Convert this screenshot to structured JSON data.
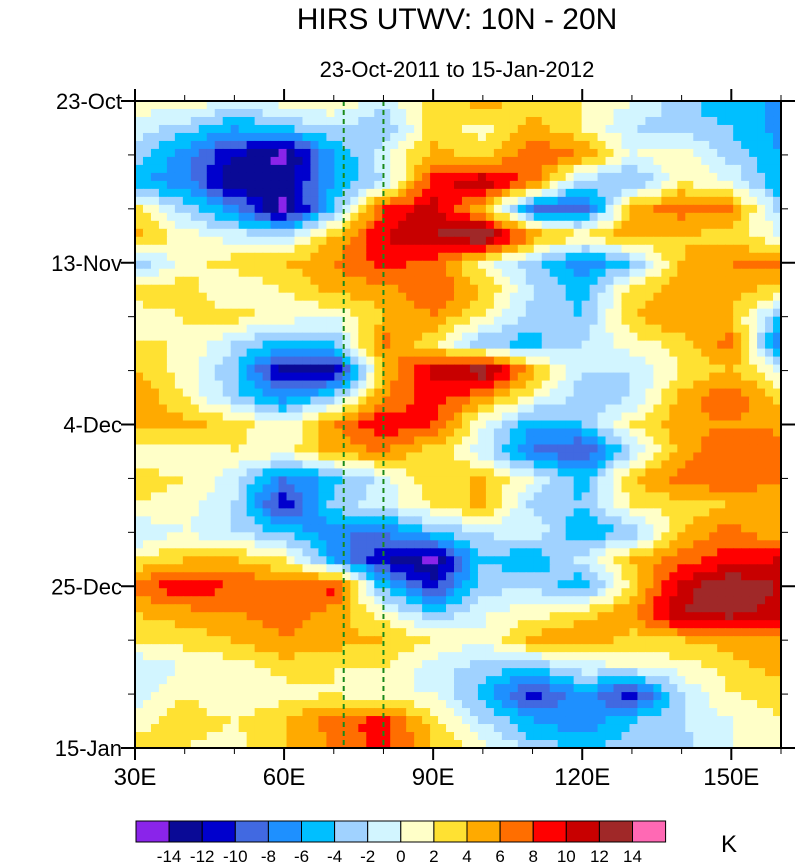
{
  "chart_data": {
    "type": "heatmap",
    "title": "HIRS UTWV: 10N - 20N",
    "subtitle": "23-Oct-2011 to 15-Jan-2012",
    "xlabel": "",
    "ylabel": "",
    "x_axis": {
      "range": [
        30,
        160
      ],
      "tick_values": [
        30,
        60,
        90,
        120,
        150
      ],
      "tick_labels": [
        "30E",
        "60E",
        "90E",
        "120E",
        "150E"
      ],
      "minor_step": 10
    },
    "y_axis": {
      "range_days": [
        0,
        84
      ],
      "tick_days": [
        0,
        21,
        42,
        63,
        84
      ],
      "tick_labels": [
        "23-Oct",
        "13-Nov",
        "4-Dec",
        "25-Dec",
        "15-Jan"
      ],
      "minor_step_days": 7,
      "direction": "downward"
    },
    "reference_lines_lon": [
      72,
      80
    ],
    "reference_line_color": "#1a8a1a",
    "colorbar": {
      "unit": "K",
      "levels": [
        -14,
        -12,
        -10,
        -8,
        -6,
        -4,
        -2,
        0,
        2,
        4,
        6,
        8,
        10,
        12,
        14
      ],
      "level_labels": [
        "-14",
        "-12",
        "-10",
        "-8",
        "-6",
        "-4",
        "-2",
        "0",
        "2",
        "4",
        "6",
        "8",
        "10",
        "12",
        "14"
      ],
      "colors": [
        "#8a24ea",
        "#0a0a96",
        "#0000cd",
        "#4169e1",
        "#1e90ff",
        "#00bfff",
        "#a0d2ff",
        "#d2f5ff",
        "#ffffc8",
        "#ffe132",
        "#ffaa00",
        "#ff6e00",
        "#ff0000",
        "#c80000",
        "#a02828",
        "#ff69b4"
      ]
    },
    "grid_lon": [
      30,
      40,
      50,
      60,
      70,
      80,
      90,
      100,
      110,
      120,
      130,
      140,
      150,
      160
    ],
    "grid_day": [
      0,
      3.5,
      7,
      10.5,
      14,
      17.5,
      21,
      24.5,
      28,
      31.5,
      35,
      38.5,
      42,
      45.5,
      49,
      52.5,
      56,
      59.5,
      63,
      66.5,
      70,
      73.5,
      77,
      80.5,
      84
    ],
    "values": [
      [
        1,
        2,
        -1,
        1,
        2,
        -1,
        3,
        5,
        3,
        2,
        0,
        -3,
        -6,
        -6
      ],
      [
        -1,
        -3,
        -6,
        -4,
        -2,
        -4,
        3,
        1,
        5,
        2,
        -2,
        -3,
        -4,
        -7
      ],
      [
        -3,
        -7,
        -12,
        -15,
        -6,
        -1,
        5,
        3,
        8,
        6,
        0,
        1,
        -3,
        -6
      ],
      [
        -6,
        -7,
        -14,
        -13,
        -6,
        -2,
        9,
        12,
        7,
        -3,
        -5,
        2,
        0,
        -6
      ],
      [
        3,
        -3,
        -7,
        -15,
        -4,
        8,
        11,
        4,
        -8,
        -10,
        5,
        7,
        6,
        -3
      ],
      [
        5,
        1,
        -1,
        -2,
        4,
        10,
        12,
        15,
        6,
        3,
        5,
        4,
        3,
        0
      ],
      [
        -4,
        1,
        3,
        4,
        6,
        9,
        7,
        1,
        -3,
        -8,
        -4,
        4,
        6,
        7
      ],
      [
        3,
        3,
        0,
        2,
        5,
        5,
        8,
        4,
        -2,
        -5,
        3,
        5,
        5,
        3
      ],
      [
        1,
        2,
        3,
        1,
        0,
        4,
        6,
        2,
        -3,
        -4,
        4,
        6,
        4,
        -4
      ],
      [
        2,
        2,
        -2,
        -5,
        -4,
        7,
        2,
        -4,
        -5,
        -2,
        1,
        3,
        7,
        -9
      ],
      [
        4,
        1,
        -4,
        -13,
        -13,
        4,
        11,
        14,
        5,
        -2,
        -2,
        2,
        4,
        0
      ],
      [
        6,
        2,
        -3,
        -7,
        -3,
        6,
        9,
        6,
        1,
        -3,
        -2,
        5,
        8,
        3
      ],
      [
        4,
        5,
        3,
        0,
        6,
        10,
        8,
        0,
        -6,
        -4,
        2,
        5,
        6,
        5
      ],
      [
        1,
        0,
        2,
        1,
        5,
        6,
        3,
        -1,
        -8,
        -11,
        -2,
        5,
        8,
        8
      ],
      [
        3,
        2,
        -1,
        -8,
        -5,
        -1,
        4,
        4,
        0,
        -5,
        4,
        7,
        8,
        6
      ],
      [
        2,
        1,
        -2,
        -12,
        -3,
        -1,
        2,
        5,
        -3,
        -4,
        2,
        3,
        4,
        5
      ],
      [
        -2,
        0,
        -2,
        -4,
        -8,
        -8,
        -4,
        -2,
        0,
        -6,
        -4,
        4,
        7,
        4
      ],
      [
        2,
        4,
        4,
        2,
        -6,
        -12,
        -15,
        -4,
        -6,
        -1,
        4,
        7,
        9,
        10
      ],
      [
        7,
        10,
        8,
        7,
        9,
        -5,
        -11,
        -3,
        -2,
        -6,
        3,
        11,
        14,
        12
      ],
      [
        4,
        5,
        6,
        7,
        5,
        1,
        -4,
        0,
        1,
        3,
        6,
        12,
        13,
        11
      ],
      [
        2,
        3,
        4,
        6,
        5,
        4,
        2,
        0,
        5,
        6,
        3,
        4,
        5,
        6
      ],
      [
        -2,
        0,
        1,
        3,
        2,
        2,
        -1,
        -3,
        -4,
        -1,
        0,
        1,
        3,
        5
      ],
      [
        -1,
        2,
        0,
        1,
        2,
        0,
        0,
        -5,
        -11,
        -6,
        -12,
        -2,
        2,
        3
      ],
      [
        1,
        3,
        2,
        4,
        7,
        9,
        3,
        -2,
        -6,
        -8,
        -4,
        -2,
        0,
        2
      ],
      [
        3,
        2,
        1,
        4,
        6,
        9,
        4,
        1,
        -3,
        -4,
        -3,
        -3,
        0,
        1
      ]
    ]
  }
}
